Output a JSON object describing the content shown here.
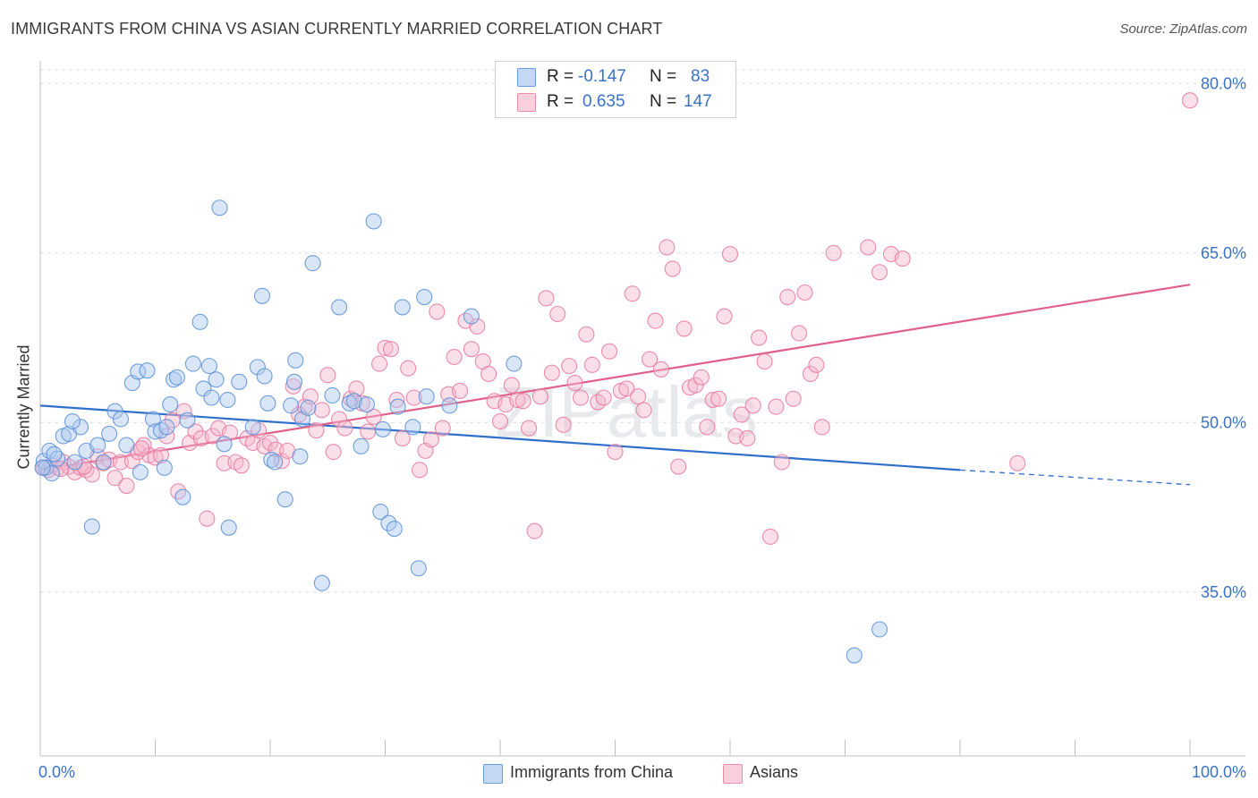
{
  "header": {
    "title": "IMMIGRANTS FROM CHINA VS ASIAN CURRENTLY MARRIED CORRELATION CHART",
    "source": "Source: ZipAtlas.com"
  },
  "watermark": "ZIPatlas",
  "legend": {
    "rows": [
      {
        "r_label": "R =",
        "r_value": "-0.147",
        "n_label": "N =",
        "n_value": "83",
        "color": "#aac8ef"
      },
      {
        "r_label": "R =",
        "r_value": "0.635",
        "n_label": "N =",
        "n_value": "147",
        "color": "#f7b9cc"
      }
    ]
  },
  "bottom_legend": [
    {
      "label": "Immigrants from China",
      "color": "#aac8ef"
    },
    {
      "label": "Asians",
      "color": "#f7b9cc"
    }
  ],
  "chart_data": {
    "type": "scatter",
    "title": "IMMIGRANTS FROM CHINA VS ASIAN CURRENTLY MARRIED CORRELATION CHART",
    "xlabel": "",
    "ylabel": "Currently Married",
    "xlim": [
      0,
      100
    ],
    "ylim": [
      20.5,
      82
    ],
    "x_tick_labels": [
      "0.0%",
      "100.0%"
    ],
    "y_ticks": [
      35,
      50,
      65,
      80
    ],
    "y_tick_labels": [
      "35.0%",
      "50.0%",
      "65.0%",
      "80.0%"
    ],
    "grid": "horizontal dashed",
    "legend_position": "top-center",
    "series": [
      {
        "name": "Immigrants from China",
        "color": "#5b8fd6",
        "fill": "#aac8ef",
        "trend": {
          "x0": 0,
          "y0": 51.5,
          "x1": 80,
          "y1": 45.8,
          "dashed_to_x": 100,
          "dashed_to_y": 44.5,
          "color": "#2f6fcc"
        },
        "points": [
          [
            0.3,
            46.6
          ],
          [
            0.5,
            46.0
          ],
          [
            0.8,
            47.5
          ],
          [
            1.0,
            45.5
          ],
          [
            1.5,
            46.8
          ],
          [
            2.0,
            48.8
          ],
          [
            2.5,
            49.0
          ],
          [
            3.0,
            46.5
          ],
          [
            3.5,
            49.6
          ],
          [
            4.0,
            47.5
          ],
          [
            4.5,
            40.8
          ],
          [
            5.0,
            48.0
          ],
          [
            5.5,
            46.5
          ],
          [
            6.0,
            49.0
          ],
          [
            6.5,
            51.0
          ],
          [
            7.0,
            50.3
          ],
          [
            7.5,
            48.0
          ],
          [
            8.0,
            53.5
          ],
          [
            8.5,
            54.5
          ],
          [
            8.7,
            45.6
          ],
          [
            9.3,
            54.6
          ],
          [
            9.8,
            50.3
          ],
          [
            10.0,
            49.2
          ],
          [
            10.5,
            49.3
          ],
          [
            10.8,
            46.0
          ],
          [
            11.3,
            51.6
          ],
          [
            11.6,
            53.8
          ],
          [
            11.9,
            54.0
          ],
          [
            12.4,
            43.4
          ],
          [
            12.8,
            50.2
          ],
          [
            13.3,
            55.2
          ],
          [
            13.9,
            58.9
          ],
          [
            14.2,
            53.0
          ],
          [
            14.7,
            55.0
          ],
          [
            14.9,
            52.2
          ],
          [
            15.3,
            53.8
          ],
          [
            15.6,
            69.0
          ],
          [
            16.3,
            52.0
          ],
          [
            16.4,
            40.7
          ],
          [
            17.3,
            53.6
          ],
          [
            18.5,
            49.6
          ],
          [
            18.9,
            54.9
          ],
          [
            19.3,
            61.2
          ],
          [
            19.5,
            54.1
          ],
          [
            19.8,
            51.7
          ],
          [
            20.1,
            46.7
          ],
          [
            20.4,
            46.5
          ],
          [
            21.3,
            43.2
          ],
          [
            21.8,
            51.5
          ],
          [
            22.1,
            53.6
          ],
          [
            22.2,
            55.5
          ],
          [
            22.6,
            47.0
          ],
          [
            22.8,
            50.3
          ],
          [
            23.3,
            51.3
          ],
          [
            23.7,
            64.1
          ],
          [
            24.5,
            35.8
          ],
          [
            25.4,
            52.4
          ],
          [
            26.0,
            60.2
          ],
          [
            26.9,
            51.7
          ],
          [
            27.3,
            51.9
          ],
          [
            27.9,
            47.9
          ],
          [
            28.4,
            51.6
          ],
          [
            29.0,
            67.8
          ],
          [
            29.6,
            42.1
          ],
          [
            29.8,
            49.4
          ],
          [
            30.3,
            41.1
          ],
          [
            30.8,
            40.6
          ],
          [
            31.1,
            51.4
          ],
          [
            31.5,
            60.2
          ],
          [
            32.4,
            49.6
          ],
          [
            32.9,
            37.1
          ],
          [
            33.4,
            61.1
          ],
          [
            33.6,
            52.3
          ],
          [
            35.6,
            51.5
          ],
          [
            37.5,
            59.4
          ],
          [
            41.2,
            55.2
          ],
          [
            73.0,
            31.7
          ],
          [
            70.8,
            29.4
          ],
          [
            1.2,
            47.2
          ],
          [
            2.8,
            50.1
          ],
          [
            16.0,
            48.1
          ],
          [
            0.2,
            46.0
          ],
          [
            11.0,
            49.6
          ]
        ]
      },
      {
        "name": "Asians",
        "color": "#e8789c",
        "fill": "#f7b9cc",
        "trend": {
          "x0": 0,
          "y0": 45.8,
          "x1": 100,
          "y1": 62.2,
          "color": "#e0608a"
        },
        "points": [
          [
            0.3,
            46.0
          ],
          [
            0.7,
            45.8
          ],
          [
            1.0,
            46.2
          ],
          [
            1.5,
            46.0
          ],
          [
            2.0,
            46.5
          ],
          [
            2.5,
            46.1
          ],
          [
            3.0,
            45.6
          ],
          [
            3.5,
            46.0
          ],
          [
            4.0,
            45.8
          ],
          [
            4.5,
            45.4
          ],
          [
            5.0,
            47.0
          ],
          [
            5.5,
            46.4
          ],
          [
            6.0,
            46.7
          ],
          [
            6.5,
            45.1
          ],
          [
            7.0,
            46.5
          ],
          [
            7.5,
            44.4
          ],
          [
            8.0,
            46.6
          ],
          [
            8.5,
            47.4
          ],
          [
            9.0,
            48.0
          ],
          [
            9.5,
            47.1
          ],
          [
            10.0,
            46.9
          ],
          [
            10.5,
            47.1
          ],
          [
            11.0,
            48.8
          ],
          [
            11.5,
            50.2
          ],
          [
            12.0,
            43.9
          ],
          [
            12.5,
            51.0
          ],
          [
            13.0,
            48.2
          ],
          [
            13.5,
            49.2
          ],
          [
            14.0,
            48.6
          ],
          [
            14.5,
            41.5
          ],
          [
            15.0,
            48.8
          ],
          [
            15.5,
            49.5
          ],
          [
            16.0,
            46.4
          ],
          [
            16.5,
            49.1
          ],
          [
            17.0,
            46.5
          ],
          [
            17.5,
            46.2
          ],
          [
            18.0,
            48.6
          ],
          [
            18.5,
            48.2
          ],
          [
            19.0,
            49.3
          ],
          [
            19.5,
            47.9
          ],
          [
            20.0,
            48.2
          ],
          [
            20.5,
            47.6
          ],
          [
            21.0,
            46.6
          ],
          [
            21.5,
            47.5
          ],
          [
            22.0,
            53.2
          ],
          [
            22.5,
            50.7
          ],
          [
            23.0,
            51.4
          ],
          [
            23.5,
            52.3
          ],
          [
            24.0,
            49.3
          ],
          [
            24.5,
            51.1
          ],
          [
            25.0,
            54.2
          ],
          [
            25.5,
            47.4
          ],
          [
            26.0,
            50.3
          ],
          [
            26.5,
            49.5
          ],
          [
            27.0,
            52.1
          ],
          [
            27.5,
            53.0
          ],
          [
            28.0,
            51.7
          ],
          [
            28.5,
            49.2
          ],
          [
            29.0,
            50.5
          ],
          [
            29.5,
            55.2
          ],
          [
            30.0,
            56.6
          ],
          [
            30.5,
            56.5
          ],
          [
            31.0,
            52.0
          ],
          [
            31.5,
            48.6
          ],
          [
            32.0,
            54.8
          ],
          [
            32.5,
            52.2
          ],
          [
            33.0,
            45.8
          ],
          [
            33.5,
            47.5
          ],
          [
            34.0,
            48.5
          ],
          [
            34.5,
            59.8
          ],
          [
            35.0,
            49.5
          ],
          [
            35.5,
            52.5
          ],
          [
            36.0,
            55.8
          ],
          [
            36.5,
            52.8
          ],
          [
            37.0,
            59.0
          ],
          [
            37.5,
            56.5
          ],
          [
            38.0,
            58.5
          ],
          [
            38.5,
            55.4
          ],
          [
            39.0,
            54.3
          ],
          [
            39.5,
            51.9
          ],
          [
            40.0,
            50.1
          ],
          [
            40.5,
            51.6
          ],
          [
            41.0,
            53.3
          ],
          [
            41.5,
            52.0
          ],
          [
            42.0,
            51.9
          ],
          [
            42.5,
            49.5
          ],
          [
            43.0,
            40.4
          ],
          [
            43.5,
            52.3
          ],
          [
            44.0,
            61.0
          ],
          [
            44.5,
            54.4
          ],
          [
            45.0,
            59.6
          ],
          [
            45.5,
            49.8
          ],
          [
            46.0,
            55.0
          ],
          [
            46.5,
            53.5
          ],
          [
            47.0,
            52.2
          ],
          [
            47.5,
            57.8
          ],
          [
            48.0,
            55.1
          ],
          [
            48.5,
            51.8
          ],
          [
            49.0,
            52.2
          ],
          [
            49.5,
            56.3
          ],
          [
            50.0,
            47.4
          ],
          [
            50.5,
            52.8
          ],
          [
            51.0,
            53.0
          ],
          [
            51.5,
            61.4
          ],
          [
            52.0,
            52.3
          ],
          [
            52.5,
            51.1
          ],
          [
            53.0,
            55.6
          ],
          [
            53.5,
            59.0
          ],
          [
            54.0,
            54.7
          ],
          [
            54.5,
            65.5
          ],
          [
            55.0,
            63.6
          ],
          [
            55.5,
            46.1
          ],
          [
            56.0,
            58.3
          ],
          [
            56.5,
            53.1
          ],
          [
            57.0,
            53.3
          ],
          [
            57.5,
            54.0
          ],
          [
            58.0,
            49.6
          ],
          [
            58.5,
            52.0
          ],
          [
            59.0,
            52.1
          ],
          [
            59.5,
            59.4
          ],
          [
            60.0,
            64.9
          ],
          [
            60.5,
            48.8
          ],
          [
            61.0,
            50.7
          ],
          [
            61.5,
            48.6
          ],
          [
            62.0,
            51.5
          ],
          [
            62.5,
            57.5
          ],
          [
            63.0,
            55.4
          ],
          [
            63.5,
            39.9
          ],
          [
            64.0,
            51.4
          ],
          [
            64.5,
            46.5
          ],
          [
            65.0,
            61.1
          ],
          [
            65.5,
            52.1
          ],
          [
            66.0,
            57.9
          ],
          [
            66.5,
            61.5
          ],
          [
            67.0,
            54.3
          ],
          [
            67.5,
            55.1
          ],
          [
            68.0,
            49.6
          ],
          [
            69.0,
            65.0
          ],
          [
            72.0,
            65.5
          ],
          [
            73.0,
            63.3
          ],
          [
            74.0,
            64.9
          ],
          [
            75.0,
            64.5
          ],
          [
            85.0,
            46.4
          ],
          [
            100.0,
            78.5
          ],
          [
            1.8,
            45.9
          ],
          [
            3.8,
            46.1
          ],
          [
            8.8,
            47.7
          ]
        ]
      }
    ]
  }
}
